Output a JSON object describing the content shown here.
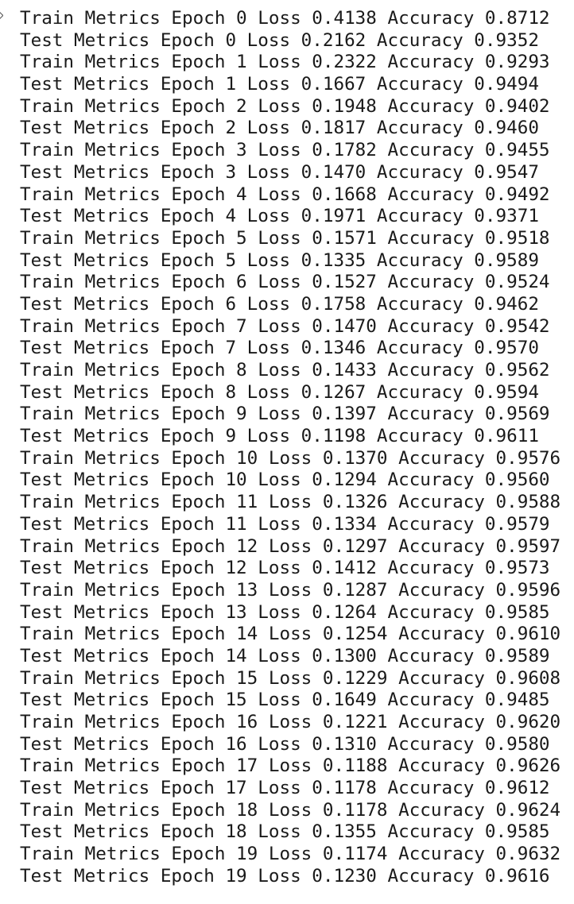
{
  "log": {
    "lines": [
      "Train Metrics Epoch 0 Loss 0.4138 Accuracy 0.8712",
      "Test Metrics Epoch 0 Loss 0.2162 Accuracy 0.9352",
      "Train Metrics Epoch 1 Loss 0.2322 Accuracy 0.9293",
      "Test Metrics Epoch 1 Loss 0.1667 Accuracy 0.9494",
      "Train Metrics Epoch 2 Loss 0.1948 Accuracy 0.9402",
      "Test Metrics Epoch 2 Loss 0.1817 Accuracy 0.9460",
      "Train Metrics Epoch 3 Loss 0.1782 Accuracy 0.9455",
      "Test Metrics Epoch 3 Loss 0.1470 Accuracy 0.9547",
      "Train Metrics Epoch 4 Loss 0.1668 Accuracy 0.9492",
      "Test Metrics Epoch 4 Loss 0.1971 Accuracy 0.9371",
      "Train Metrics Epoch 5 Loss 0.1571 Accuracy 0.9518",
      "Test Metrics Epoch 5 Loss 0.1335 Accuracy 0.9589",
      "Train Metrics Epoch 6 Loss 0.1527 Accuracy 0.9524",
      "Test Metrics Epoch 6 Loss 0.1758 Accuracy 0.9462",
      "Train Metrics Epoch 7 Loss 0.1470 Accuracy 0.9542",
      "Test Metrics Epoch 7 Loss 0.1346 Accuracy 0.9570",
      "Train Metrics Epoch 8 Loss 0.1433 Accuracy 0.9562",
      "Test Metrics Epoch 8 Loss 0.1267 Accuracy 0.9594",
      "Train Metrics Epoch 9 Loss 0.1397 Accuracy 0.9569",
      "Test Metrics Epoch 9 Loss 0.1198 Accuracy 0.9611",
      "Train Metrics Epoch 10 Loss 0.1370 Accuracy 0.9576",
      "Test Metrics Epoch 10 Loss 0.1294 Accuracy 0.9560",
      "Train Metrics Epoch 11 Loss 0.1326 Accuracy 0.9588",
      "Test Metrics Epoch 11 Loss 0.1334 Accuracy 0.9579",
      "Train Metrics Epoch 12 Loss 0.1297 Accuracy 0.9597",
      "Test Metrics Epoch 12 Loss 0.1412 Accuracy 0.9573",
      "Train Metrics Epoch 13 Loss 0.1287 Accuracy 0.9596",
      "Test Metrics Epoch 13 Loss 0.1264 Accuracy 0.9585",
      "Train Metrics Epoch 14 Loss 0.1254 Accuracy 0.9610",
      "Test Metrics Epoch 14 Loss 0.1300 Accuracy 0.9589",
      "Train Metrics Epoch 15 Loss 0.1229 Accuracy 0.9608",
      "Test Metrics Epoch 15 Loss 0.1649 Accuracy 0.9485",
      "Train Metrics Epoch 16 Loss 0.1221 Accuracy 0.9620",
      "Test Metrics Epoch 16 Loss 0.1310 Accuracy 0.9580",
      "Train Metrics Epoch 17 Loss 0.1188 Accuracy 0.9626",
      "Test Metrics Epoch 17 Loss 0.1178 Accuracy 0.9612",
      "Train Metrics Epoch 18 Loss 0.1178 Accuracy 0.9624",
      "Test Metrics Epoch 18 Loss 0.1355 Accuracy 0.9585",
      "Train Metrics Epoch 19 Loss 0.1174 Accuracy 0.9632",
      "Test Metrics Epoch 19 Loss 0.1230 Accuracy 0.9616"
    ]
  },
  "icons": {
    "collapse": "chevron-icon"
  },
  "colors": {
    "text": "#1a1a1a",
    "background": "#ffffff"
  }
}
